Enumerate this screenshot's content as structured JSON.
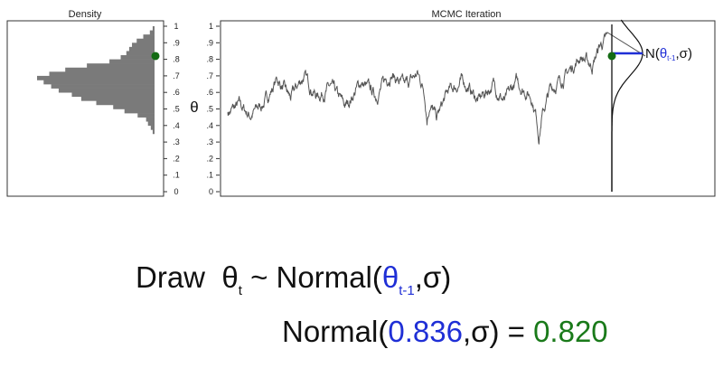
{
  "chart_data": [
    {
      "type": "histogram",
      "title": "Density",
      "orientation": "horizontal",
      "ylim": [
        0,
        1
      ],
      "yticks": [
        "0",
        ".1",
        ".2",
        ".3",
        ".4",
        ".5",
        ".6",
        ".7",
        ".8",
        ".9",
        "1"
      ],
      "bin_width": 0.025,
      "bins": [
        {
          "y": 0.35,
          "count": 2
        },
        {
          "y": 0.375,
          "count": 4
        },
        {
          "y": 0.4,
          "count": 7
        },
        {
          "y": 0.425,
          "count": 9
        },
        {
          "y": 0.45,
          "count": 18
        },
        {
          "y": 0.475,
          "count": 32
        },
        {
          "y": 0.5,
          "count": 44
        },
        {
          "y": 0.525,
          "count": 62
        },
        {
          "y": 0.55,
          "count": 78
        },
        {
          "y": 0.575,
          "count": 88
        },
        {
          "y": 0.6,
          "count": 102
        },
        {
          "y": 0.625,
          "count": 110
        },
        {
          "y": 0.65,
          "count": 118
        },
        {
          "y": 0.675,
          "count": 125
        },
        {
          "y": 0.7,
          "count": 112
        },
        {
          "y": 0.725,
          "count": 95
        },
        {
          "y": 0.75,
          "count": 72
        },
        {
          "y": 0.775,
          "count": 48
        },
        {
          "y": 0.8,
          "count": 36
        },
        {
          "y": 0.825,
          "count": 30
        },
        {
          "y": 0.85,
          "count": 27
        },
        {
          "y": 0.875,
          "count": 24
        },
        {
          "y": 0.9,
          "count": 19
        },
        {
          "y": 0.925,
          "count": 12
        },
        {
          "y": 0.95,
          "count": 5
        },
        {
          "y": 0.975,
          "count": 2
        }
      ],
      "current_point": 0.82
    },
    {
      "type": "line",
      "title": "MCMC Iteration",
      "ylabel": "θ",
      "ylim": [
        0,
        1
      ],
      "yticks": [
        "0",
        ".1",
        ".2",
        ".3",
        ".4",
        ".5",
        ".6",
        ".7",
        ".8",
        ".9",
        "1"
      ],
      "iterations": 2000,
      "anchors": [
        {
          "t": 0,
          "v": 0.48
        },
        {
          "t": 60,
          "v": 0.52
        },
        {
          "t": 120,
          "v": 0.46
        },
        {
          "t": 200,
          "v": 0.55
        },
        {
          "t": 260,
          "v": 0.68
        },
        {
          "t": 330,
          "v": 0.56
        },
        {
          "t": 400,
          "v": 0.7
        },
        {
          "t": 470,
          "v": 0.58
        },
        {
          "t": 540,
          "v": 0.63
        },
        {
          "t": 620,
          "v": 0.51
        },
        {
          "t": 700,
          "v": 0.66
        },
        {
          "t": 780,
          "v": 0.58
        },
        {
          "t": 860,
          "v": 0.72
        },
        {
          "t": 930,
          "v": 0.63
        },
        {
          "t": 1000,
          "v": 0.71
        },
        {
          "t": 1060,
          "v": 0.55
        },
        {
          "t": 1100,
          "v": 0.44
        },
        {
          "t": 1160,
          "v": 0.6
        },
        {
          "t": 1240,
          "v": 0.67
        },
        {
          "t": 1320,
          "v": 0.55
        },
        {
          "t": 1400,
          "v": 0.65
        },
        {
          "t": 1460,
          "v": 0.54
        },
        {
          "t": 1520,
          "v": 0.66
        },
        {
          "t": 1600,
          "v": 0.58
        },
        {
          "t": 1640,
          "v": 0.4
        },
        {
          "t": 1700,
          "v": 0.62
        },
        {
          "t": 1780,
          "v": 0.7
        },
        {
          "t": 1860,
          "v": 0.82
        },
        {
          "t": 1920,
          "v": 0.76
        },
        {
          "t": 1960,
          "v": 0.88
        },
        {
          "t": 2000,
          "v": 0.92
        }
      ],
      "spikes": [
        {
          "t": 1050,
          "v": 0.45
        },
        {
          "t": 1640,
          "v": 0.34
        },
        {
          "t": 2060,
          "v": 0.99
        }
      ],
      "current_point": {
        "t": 2200,
        "v": 0.82
      },
      "proposal": {
        "label": "N(",
        "theta": "θ",
        "sub": "t-1",
        "tail": ",σ)",
        "center": 0.836
      }
    }
  ],
  "formula": {
    "draw_label": "Draw",
    "theta": "θ",
    "theta_sub": "t",
    "tilde": "~",
    "normal_open": "Normal(",
    "prev_theta": "θ",
    "prev_sub": "t-1",
    "sigma_close": ",σ)",
    "normal2_open": "Normal(",
    "value_prev": "0.836",
    "sigma_close2": ",σ) = ",
    "value_new": "0.820"
  },
  "colors": {
    "bar": "#7a7a7a",
    "line": "#555555",
    "accent_blue": "#1f2fd6",
    "accent_green": "#1a7a1a",
    "dot_green": "#146b14"
  }
}
